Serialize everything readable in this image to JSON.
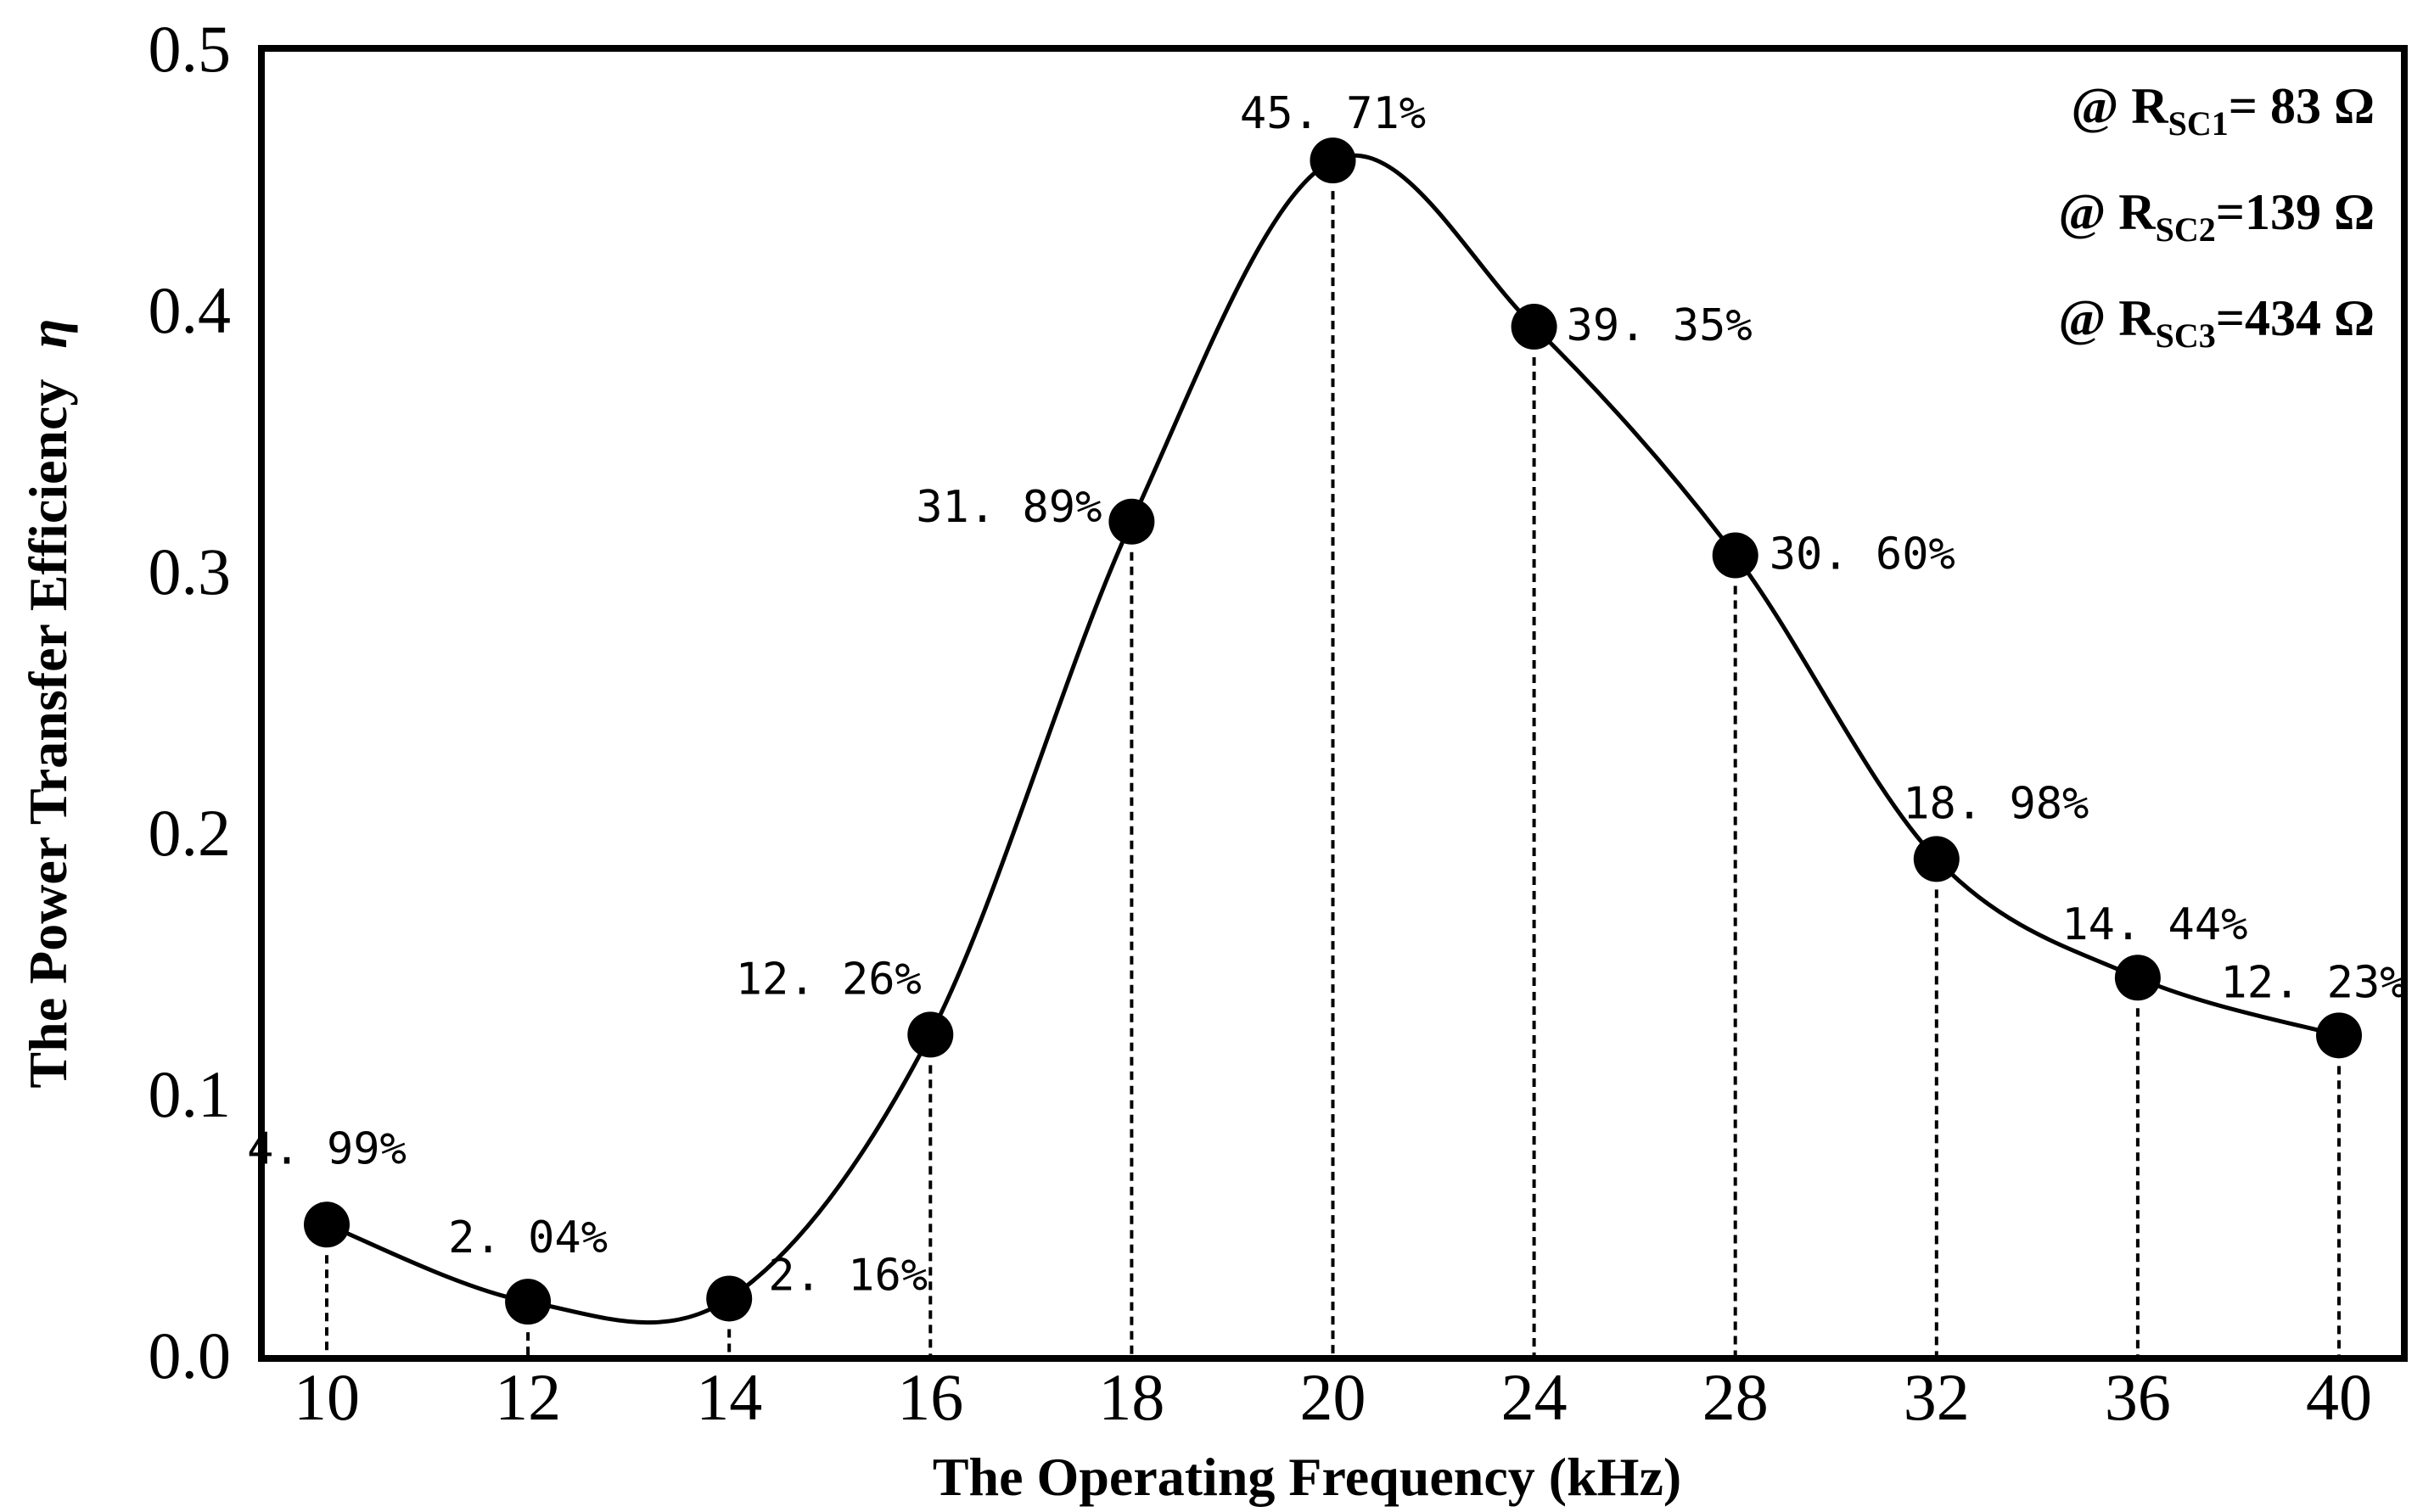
{
  "chart_data": {
    "type": "line",
    "title": "",
    "xlabel": "The Operating Frequency (kHz)",
    "ylabel": "The Power Transfer Efficiency",
    "ylabel_symbol": "η",
    "x_tick_labels": [
      "10",
      "12",
      "14",
      "16",
      "18",
      "20",
      "24",
      "28",
      "32",
      "36",
      "40"
    ],
    "y_tick_labels": [
      "0.0",
      "0.1",
      "0.2",
      "0.3",
      "0.4",
      "0.5"
    ],
    "ylim": [
      0,
      0.5
    ],
    "grid": false,
    "legend_position": "top-right",
    "series": [
      {
        "name": "Power Transfer Efficiency",
        "x": [
          10,
          12,
          14,
          16,
          18,
          20,
          24,
          28,
          32,
          36,
          40
        ],
        "values": [
          0.0499,
          0.0204,
          0.0216,
          0.1226,
          0.3189,
          0.4571,
          0.3935,
          0.306,
          0.1898,
          0.1444,
          0.1223
        ],
        "labels": [
          "4. 99%",
          "2. 04%",
          "2. 16%",
          "12. 26%",
          "31. 89%",
          "45. 71%",
          "39. 35%",
          "30. 60%",
          "18. 98%",
          "14. 44%",
          "12. 23%"
        ]
      }
    ],
    "annotations": [
      {
        "prefix": "@ R",
        "sub": "SC1",
        "suffix": "= 83  Ω"
      },
      {
        "prefix": "@ R",
        "sub": "SC2",
        "suffix": "=139 Ω"
      },
      {
        "prefix": "@ R",
        "sub": "SC3",
        "suffix": "=434 Ω"
      }
    ]
  }
}
